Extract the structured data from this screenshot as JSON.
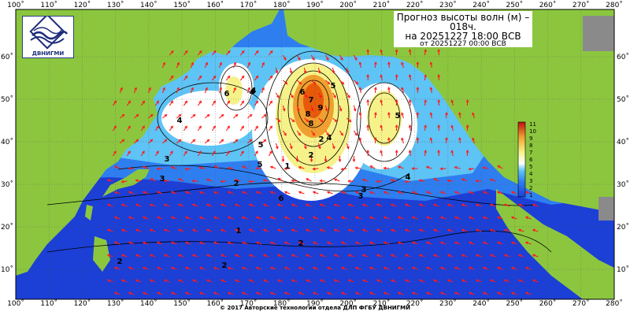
{
  "map": {
    "title_line1": "Прогноз высоты волн (м) –",
    "title_line2": "018ч.",
    "title_line3": "на 20251227 18:00 ВСВ",
    "title_line4": "от 20251227 00:00 ВСВ",
    "footer": "© 2017 Авторские технологии отдела ДЛП ФГБУ ДВНИГМИ",
    "logo_text": "ДВНИГМИ",
    "lon_ticks": [
      "100˚",
      "110˚",
      "120˚",
      "130˚",
      "140˚",
      "150˚",
      "160˚",
      "170˚",
      "180˚",
      "190˚",
      "200˚",
      "210˚",
      "220˚",
      "230˚",
      "240˚",
      "250˚",
      "260˚",
      "270˚",
      "280˚"
    ],
    "lat_ticks": [
      "60˚",
      "50˚",
      "40˚",
      "30˚",
      "20˚",
      "10˚"
    ],
    "legend_labels": [
      "1",
      "2",
      "3",
      "4",
      "5",
      "6",
      "7",
      "8",
      "9",
      "10",
      "11"
    ],
    "contour_labels": [
      "6",
      "4",
      "5",
      "6",
      "7",
      "8",
      "9",
      "8",
      "5",
      "4",
      "3",
      "2",
      "4",
      "5",
      "6",
      "4",
      "3",
      "3",
      "2",
      "2",
      "1",
      "1",
      "2",
      "2",
      "5",
      "4",
      "3",
      "2"
    ],
    "colors": {
      "land": "#8cc63f",
      "ocean_deep": "#1c3fd6",
      "ocean_mid": "#2e7ef0",
      "ocean_light": "#5ec3f5",
      "calm": "#ffffff",
      "high": "#f6f28a",
      "peak": "#e65a0a",
      "arrow": "#ff1a1a",
      "grid": "#444444"
    }
  }
}
